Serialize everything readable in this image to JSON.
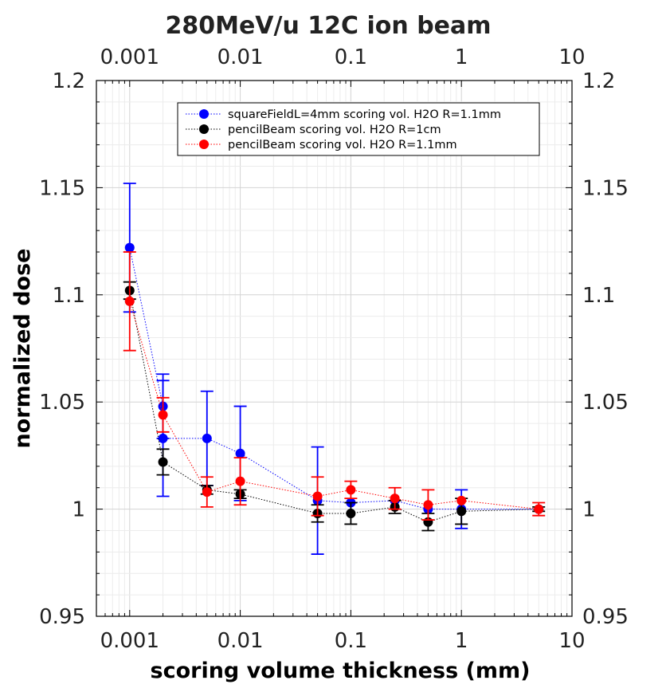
{
  "chart_data": {
    "type": "scatter",
    "title": "280MeV/u 12C ion beam",
    "xlabel": "scoring volume thickness (mm)",
    "ylabel": "normalized dose",
    "xscale": "log",
    "xlim": [
      0.0005,
      10
    ],
    "ylim": [
      0.95,
      1.2
    ],
    "x_ticks": [
      {
        "value": 0.001,
        "label": "0.001"
      },
      {
        "value": 0.01,
        "label": "0.01"
      },
      {
        "value": 0.1,
        "label": "0.1"
      },
      {
        "value": 1,
        "label": "1"
      },
      {
        "value": 10,
        "label": "10"
      }
    ],
    "y_ticks": [
      {
        "value": 0.95,
        "label": "0.95"
      },
      {
        "value": 1.0,
        "label": "1"
      },
      {
        "value": 1.05,
        "label": "1.05"
      },
      {
        "value": 1.1,
        "label": "1.1"
      },
      {
        "value": 1.15,
        "label": "1.15"
      },
      {
        "value": 1.2,
        "label": "1.2"
      }
    ],
    "grid": true,
    "legend_position": "top-right",
    "series": [
      {
        "name": "squareFieldL=4mm scoring vol. H2O R=1.1mm",
        "color": "#0000ff",
        "line_style": "dotted",
        "points": [
          {
            "x": 0.001,
            "y": 1.122,
            "err": 0.03
          },
          {
            "x": 0.002,
            "y": 1.048,
            "err": 0.015
          },
          {
            "x": 0.002,
            "y": 1.033,
            "err": 0.027
          },
          {
            "x": 0.005,
            "y": 1.033,
            "err": 0.022
          },
          {
            "x": 0.01,
            "y": 1.026,
            "err": 0.022
          },
          {
            "x": 0.05,
            "y": 1.004,
            "err": 0.025
          },
          {
            "x": 0.1,
            "y": 1.003,
            "err": 0.0
          },
          {
            "x": 0.25,
            "y": 1.004,
            "err": 0.0
          },
          {
            "x": 0.5,
            "y": 1.0,
            "err": 0.0
          },
          {
            "x": 1,
            "y": 1.0,
            "err": 0.009
          },
          {
            "x": 5,
            "y": 1.0,
            "err": 0.0
          }
        ]
      },
      {
        "name": "pencilBeam scoring vol. H2O R=1cm",
        "color": "#000000",
        "line_style": "dotted",
        "points": [
          {
            "x": 0.001,
            "y": 1.102,
            "err": 0.004
          },
          {
            "x": 0.002,
            "y": 1.022,
            "err": 0.006
          },
          {
            "x": 0.005,
            "y": 1.009,
            "err": 0.002
          },
          {
            "x": 0.01,
            "y": 1.007,
            "err": 0.002
          },
          {
            "x": 0.05,
            "y": 0.998,
            "err": 0.004
          },
          {
            "x": 0.1,
            "y": 0.998,
            "err": 0.005
          },
          {
            "x": 0.25,
            "y": 1.001,
            "err": 0.003
          },
          {
            "x": 0.5,
            "y": 0.994,
            "err": 0.004
          },
          {
            "x": 1,
            "y": 0.999,
            "err": 0.006
          },
          {
            "x": 5,
            "y": 1.0,
            "err": 0.001
          }
        ]
      },
      {
        "name": "pencilBeam scoring vol. H2O R=1.1mm",
        "color": "#ff0000",
        "line_style": "dotted",
        "points": [
          {
            "x": 0.001,
            "y": 1.097,
            "err": 0.023
          },
          {
            "x": 0.002,
            "y": 1.044,
            "err": 0.008
          },
          {
            "x": 0.005,
            "y": 1.008,
            "err": 0.007
          },
          {
            "x": 0.01,
            "y": 1.013,
            "err": 0.011
          },
          {
            "x": 0.05,
            "y": 1.006,
            "err": 0.009
          },
          {
            "x": 0.1,
            "y": 1.009,
            "err": 0.004
          },
          {
            "x": 0.25,
            "y": 1.005,
            "err": 0.005
          },
          {
            "x": 0.5,
            "y": 1.002,
            "err": 0.007
          },
          {
            "x": 1,
            "y": 1.004,
            "err": 0.0
          },
          {
            "x": 5,
            "y": 1.0,
            "err": 0.003
          }
        ]
      }
    ]
  }
}
